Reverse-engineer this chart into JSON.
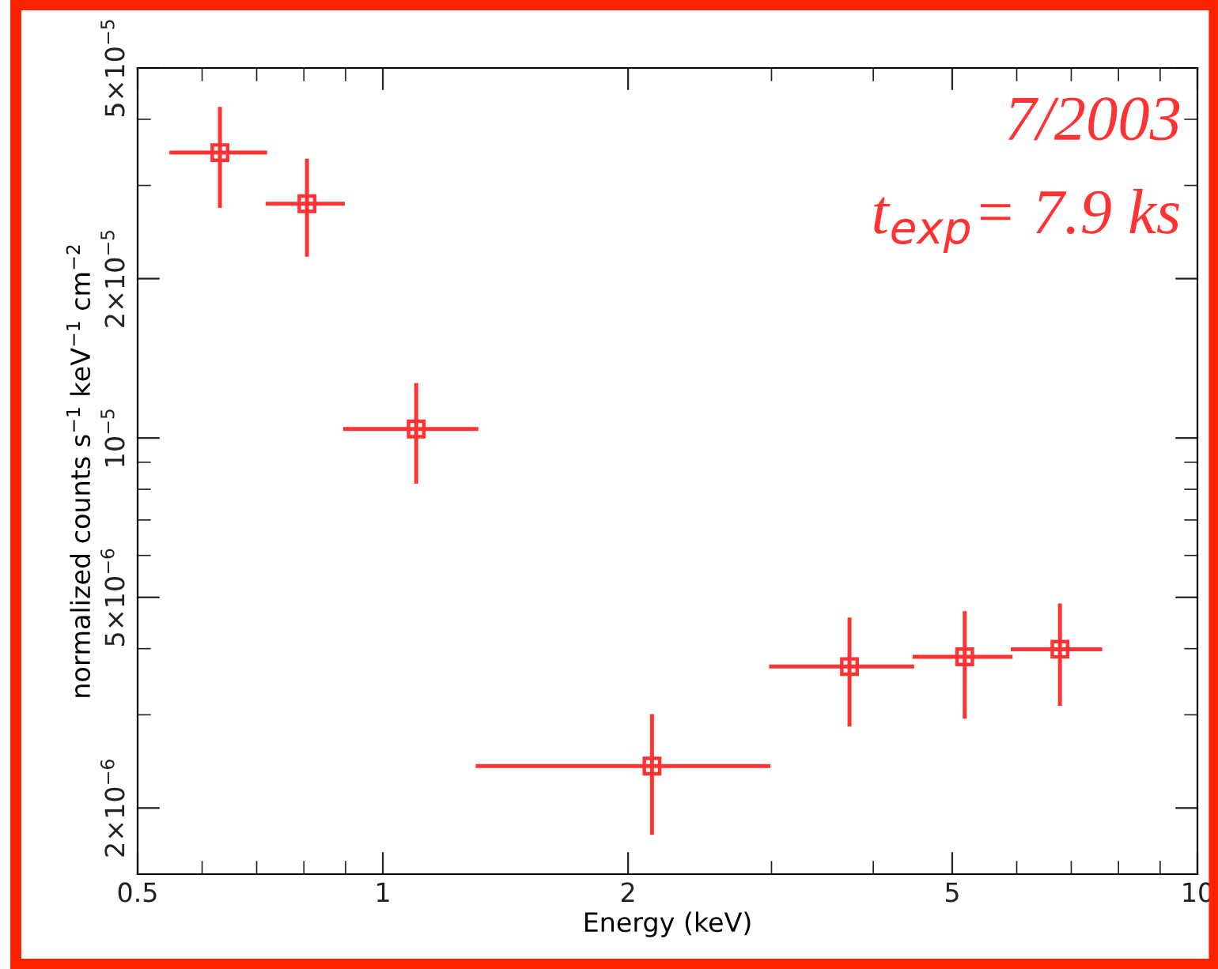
{
  "chart_data": {
    "type": "scatter",
    "xlabel": "Energy (keV)",
    "ylabel": "normalized counts s$^{−1}$ keV$^{−1}$ cm$^{−2}$",
    "annotations": [
      "7/2003",
      "t$_{exp}$= 7.9 ks"
    ],
    "log": "xy",
    "marker": "square",
    "grid": false,
    "xlim": [
      0.5,
      10
    ],
    "ylim": [
      1.5e-06,
      5e-05
    ],
    "xticks": [
      0.5,
      {
        "value": 0.6,
        "label": null
      },
      {
        "value": 0.7,
        "label": null
      },
      {
        "value": 0.8,
        "label": null
      },
      {
        "value": 0.9,
        "label": null
      },
      1,
      2,
      {
        "value": 3,
        "label": null
      },
      {
        "value": 4,
        "label": null
      },
      5,
      {
        "value": 6,
        "label": null
      },
      {
        "value": 7,
        "label": null
      },
      {
        "value": 8,
        "label": null
      },
      {
        "value": 9,
        "label": null
      },
      10
    ],
    "yticks": [
      {
        "value": 2e-06,
        "label": "2×10$^{−6}$"
      },
      {
        "value": 3e-06,
        "label": null
      },
      {
        "value": 4e-06,
        "label": null
      },
      {
        "value": 5e-06,
        "label": "5×10$^{−6}$"
      },
      {
        "value": 6e-06,
        "label": null
      },
      {
        "value": 7e-06,
        "label": null
      },
      {
        "value": 8e-06,
        "label": null
      },
      {
        "value": 9e-06,
        "label": null
      },
      {
        "value": 1e-05,
        "label": "10$^{−5}$"
      },
      {
        "value": 2e-05,
        "label": "2×10$^{−5}$"
      },
      {
        "value": 3e-05,
        "label": null
      },
      {
        "value": 4e-05,
        "label": null
      },
      {
        "value": 5e-05,
        "label": "5×10$^{−5}$"
      }
    ],
    "series": [
      {
        "color": "#ff3333",
        "x": [
          0.631,
          0.807,
          1.099,
          2.14,
          3.74,
          5.18,
          6.78
        ],
        "values": [
          3.46e-05,
          2.77e-05,
          1.04e-05,
          2.4e-06,
          3.7e-06,
          3.86e-06,
          3.99e-06
        ],
        "xerrors": [
          [
            0.547,
            0.721
          ],
          [
            0.718,
            0.898
          ],
          [
            0.894,
            1.31
          ],
          [
            1.3,
            2.99
          ],
          [
            2.98,
            4.49
          ],
          [
            4.47,
            5.93
          ],
          [
            5.9,
            7.64
          ]
        ],
        "errors": [
          [
            2.72e-05,
            4.22e-05
          ],
          [
            2.2e-05,
            3.37e-05
          ],
          [
            8.2e-06,
            1.27e-05
          ],
          [
            1.78e-06,
            3.01e-06
          ],
          [
            2.85e-06,
            4.58e-06
          ],
          [
            2.95e-06,
            4.71e-06
          ],
          [
            3.12e-06,
            4.87e-06
          ]
        ]
      }
    ]
  }
}
